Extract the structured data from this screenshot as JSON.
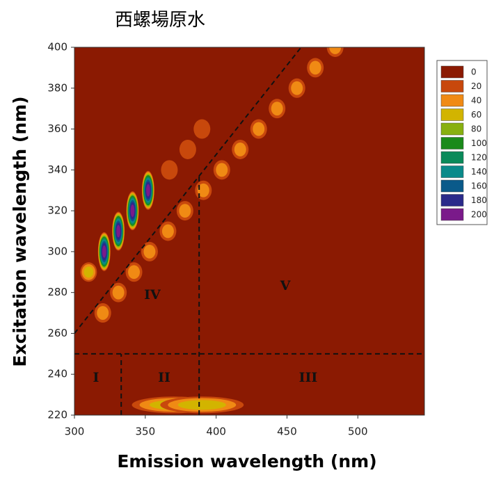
{
  "chart_data": {
    "type": "contour",
    "title": "西螺場原水",
    "xlabel": "Emission wavelength (nm)",
    "ylabel": "Excitation wavelength (nm)",
    "xlim": [
      300,
      547
    ],
    "ylim": [
      220,
      400
    ],
    "xticks": [
      300,
      350,
      400,
      450,
      500
    ],
    "yticks": [
      220,
      240,
      260,
      280,
      300,
      320,
      340,
      360,
      380,
      400
    ],
    "levels": [
      0,
      20,
      40,
      60,
      80,
      100,
      120,
      140,
      160,
      180,
      200
    ],
    "colors": [
      "#8b1a02",
      "#c8480c",
      "#f08a14",
      "#d2b400",
      "#88b010",
      "#1a8a1a",
      "#0a8a5a",
      "#0a8a8a",
      "#0a5a8a",
      "#2a2a8a",
      "#7a1a8a"
    ],
    "peaks": {
      "em": [
        320,
        331,
        342,
        353,
        366,
        378,
        391,
        404,
        417,
        430,
        443,
        457,
        470,
        484,
        310,
        321,
        331,
        341,
        352,
        367,
        380,
        390,
        370,
        390
      ],
      "ex": [
        270,
        280,
        290,
        300,
        310,
        320,
        330,
        340,
        350,
        360,
        370,
        380,
        390,
        400,
        290,
        300,
        310,
        320,
        330,
        340,
        350,
        360,
        225,
        225
      ],
      "intensity": [
        40,
        40,
        40,
        40,
        40,
        40,
        40,
        40,
        40,
        40,
        40,
        40,
        40,
        40,
        60,
        200,
        200,
        200,
        200,
        20,
        20,
        20,
        60,
        60
      ]
    },
    "dividers": {
      "ex_split": 250,
      "em_split": [
        333,
        388
      ],
      "diagonal": [
        [
          300,
          260
        ],
        [
          460,
          400
        ]
      ]
    },
    "regions": [
      "I",
      "II",
      "III",
      "IV",
      "V"
    ]
  }
}
